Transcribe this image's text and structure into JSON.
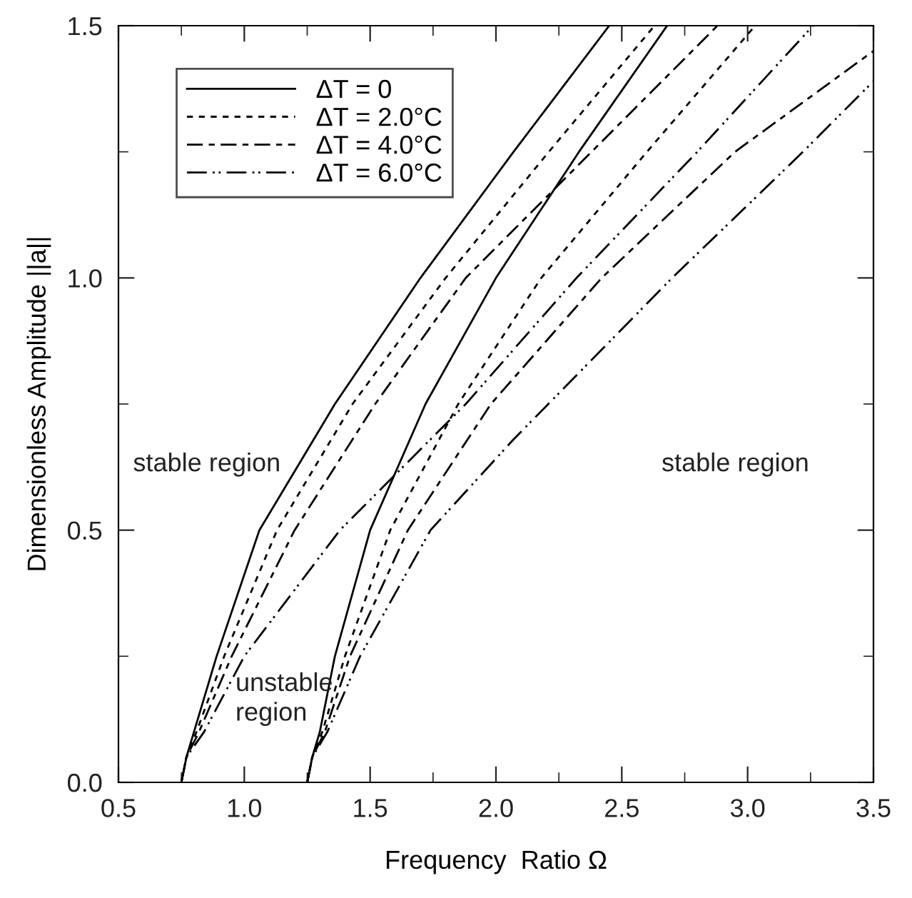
{
  "chart_data": {
    "type": "line",
    "xlabel": "Frequency  Ratio Ω",
    "ylabel": "Dimensionless Amplitude ||a||",
    "xlim": [
      0.5,
      3.5
    ],
    "ylim": [
      0,
      1.5
    ],
    "xticks": [
      0.5,
      {
        "value": 0.75,
        "label": null
      },
      {
        "value": 1.0,
        "label": "1.0"
      },
      {
        "value": 1.25,
        "label": null
      },
      1.5,
      {
        "value": 1.75,
        "label": null
      },
      {
        "value": 2.0,
        "label": "2.0"
      },
      {
        "value": 2.25,
        "label": null
      },
      2.5,
      {
        "value": 2.75,
        "label": null
      },
      {
        "value": 3.0,
        "label": "3.0"
      },
      {
        "value": 3.25,
        "label": null
      },
      3.5
    ],
    "yticks": [
      {
        "value": 0.0,
        "label": "0.0"
      },
      {
        "value": 0.25,
        "label": null
      },
      0.5,
      {
        "value": 0.75,
        "label": null
      },
      {
        "value": 1.0,
        "label": "1.0"
      },
      {
        "value": 1.25,
        "label": null
      },
      1.5
    ],
    "grid": false,
    "legend": "top left",
    "marker": "none",
    "series": [
      {
        "name": "ΔT = 0",
        "color": "#000000",
        "line_style": "solid",
        "x": [
          0.75,
          0.77,
          0.8,
          0.89,
          1.06,
          1.36,
          1.7,
          2.07,
          2.45,
          null,
          1.25,
          1.27,
          1.3,
          1.36,
          1.5,
          1.72,
          2.0,
          2.33,
          2.68
        ],
        "values": [
          0,
          0.05,
          0.1,
          0.25,
          0.5,
          0.75,
          1.0,
          1.25,
          1.5,
          null,
          0,
          0.05,
          0.1,
          0.25,
          0.5,
          0.75,
          1.0,
          1.25,
          1.5
        ]
      },
      {
        "name": "ΔT = 2.0°C",
        "color": "#000000",
        "line_style": "dashed",
        "x": [
          0.75,
          0.77,
          0.81,
          0.92,
          1.13,
          1.43,
          1.8,
          2.21,
          2.63,
          null,
          1.25,
          1.27,
          1.31,
          1.4,
          1.58,
          1.85,
          2.18,
          2.6,
          3.03
        ],
        "values": [
          0,
          0.05,
          0.1,
          0.25,
          0.5,
          0.75,
          1.0,
          1.25,
          1.5,
          null,
          0,
          0.05,
          0.1,
          0.25,
          0.5,
          0.75,
          1.0,
          1.25,
          1.5
        ]
      },
      {
        "name": "ΔT = 4.0°C",
        "color": "#000000",
        "line_style": "dashdot",
        "x": [
          0.75,
          0.77,
          0.82,
          0.95,
          1.2,
          1.52,
          1.88,
          2.38,
          2.88,
          null,
          1.25,
          1.27,
          1.32,
          1.42,
          1.65,
          1.98,
          2.42,
          2.95,
          3.5
        ],
        "values": [
          0,
          0.05,
          0.1,
          0.25,
          0.5,
          0.75,
          1.0,
          1.25,
          1.5,
          null,
          0,
          0.05,
          0.1,
          0.25,
          0.5,
          0.75,
          1.0,
          1.25,
          1.45
        ]
      },
      {
        "name": "ΔT = 6.0°C",
        "color": "#000000",
        "line_style": "dashdotdot",
        "x": [
          0.75,
          0.77,
          0.84,
          1.0,
          1.38,
          1.88,
          2.32,
          2.8,
          3.26,
          null,
          1.25,
          1.27,
          1.33,
          1.46,
          1.74,
          2.07,
          2.7,
          3.22,
          3.5
        ],
        "values": [
          0,
          0.05,
          0.1,
          0.25,
          0.5,
          0.75,
          1.0,
          1.25,
          1.5,
          null,
          0,
          0.05,
          0.1,
          0.25,
          0.5,
          0.68,
          1.0,
          1.25,
          1.39
        ]
      }
    ],
    "annotations": [
      "stable region",
      "stable region",
      "unstable\nregion"
    ]
  }
}
